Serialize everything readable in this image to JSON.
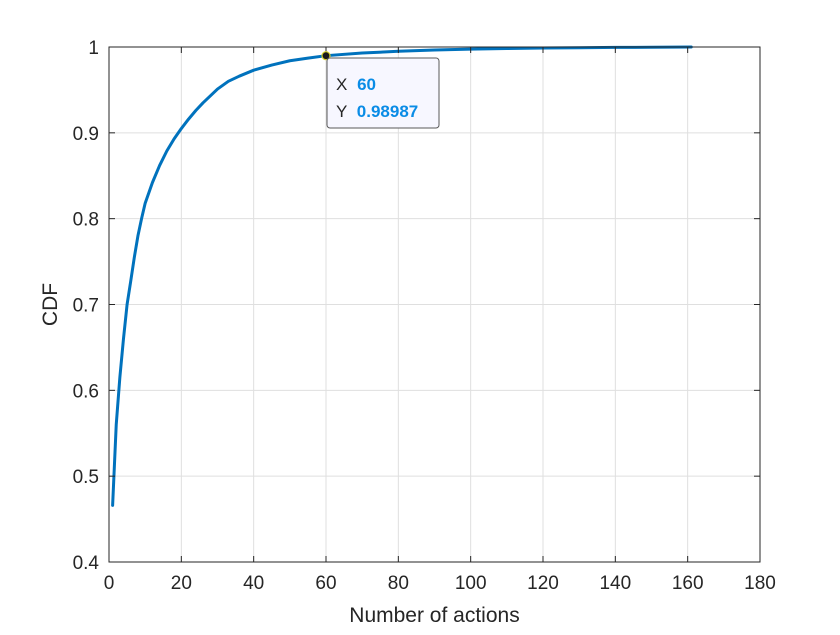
{
  "chart_data": {
    "type": "line",
    "title": "",
    "xlabel": "Number of actions",
    "ylabel": "CDF",
    "xlim": [
      0,
      180
    ],
    "ylim": [
      0.4,
      1
    ],
    "xticks": [
      0,
      20,
      40,
      60,
      80,
      100,
      120,
      140,
      160,
      180
    ],
    "yticks": [
      0.4,
      0.5,
      0.6,
      0.7,
      0.8,
      0.9,
      1
    ],
    "xtick_labels": [
      "0",
      "20",
      "40",
      "60",
      "80",
      "100",
      "120",
      "140",
      "160",
      "180"
    ],
    "ytick_labels": [
      "0.4",
      "0.5",
      "0.6",
      "0.7",
      "0.8",
      "0.9",
      "1"
    ],
    "grid": true,
    "legend": "none",
    "series": [
      {
        "color": "#0072BD",
        "x": [
          1,
          2,
          3,
          4,
          5,
          6,
          7,
          8,
          9,
          10,
          12,
          14,
          16,
          18,
          20,
          22,
          24,
          26,
          28,
          30,
          33,
          36,
          40,
          45,
          50,
          55,
          60,
          70,
          80,
          90,
          100,
          110,
          120,
          130,
          140,
          150,
          161
        ],
        "y": [
          0.466,
          0.56,
          0.615,
          0.66,
          0.7,
          0.727,
          0.755,
          0.78,
          0.8,
          0.818,
          0.842,
          0.862,
          0.879,
          0.893,
          0.905,
          0.916,
          0.926,
          0.935,
          0.943,
          0.951,
          0.96,
          0.966,
          0.973,
          0.979,
          0.984,
          0.987,
          0.98987,
          0.993,
          0.995,
          0.9965,
          0.9975,
          0.9982,
          0.9988,
          0.9992,
          0.9995,
          0.9997,
          1.0
        ]
      }
    ],
    "datatip": {
      "x_label": "X",
      "x_value": "60",
      "y_label": "Y",
      "y_value": "0.98987",
      "value_color": "#0a8ce6",
      "x": 60,
      "y": 0.98987
    }
  }
}
